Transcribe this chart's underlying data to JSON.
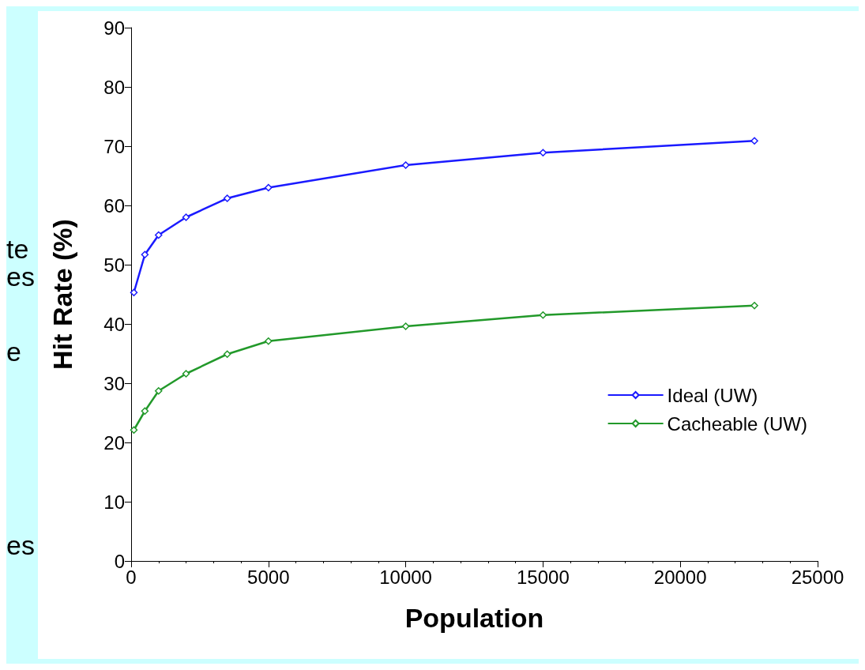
{
  "chart_data": {
    "type": "line",
    "xlabel": "Population",
    "ylabel": "Hit Rate (%)",
    "xlim": [
      0,
      25000
    ],
    "xticks": [
      0,
      5000,
      10000,
      15000,
      20000,
      25000
    ],
    "ylim": [
      0,
      90
    ],
    "yticks": [
      0,
      10,
      20,
      30,
      40,
      50,
      60,
      70,
      80,
      90
    ],
    "series": [
      {
        "name": "Ideal (UW)",
        "color": "#1a1aff",
        "x": [
          100,
          500,
          1000,
          2000,
          3500,
          5000,
          10000,
          15000,
          22700
        ],
        "values": [
          45.3,
          51.7,
          55,
          58,
          61.2,
          63,
          66.8,
          68.9,
          70.9
        ]
      },
      {
        "name": "Cacheable (UW)",
        "color": "#22992a",
        "x": [
          100,
          500,
          1000,
          2000,
          3500,
          5000,
          10000,
          15000,
          22700
        ],
        "values": [
          22.1,
          25.3,
          28.7,
          31.6,
          34.9,
          37.1,
          39.6,
          41.5,
          43.1
        ]
      }
    ],
    "marker": "diamond",
    "grid": false,
    "legend": "right",
    "annotations": [
      "te",
      "es",
      "e",
      "es"
    ]
  }
}
